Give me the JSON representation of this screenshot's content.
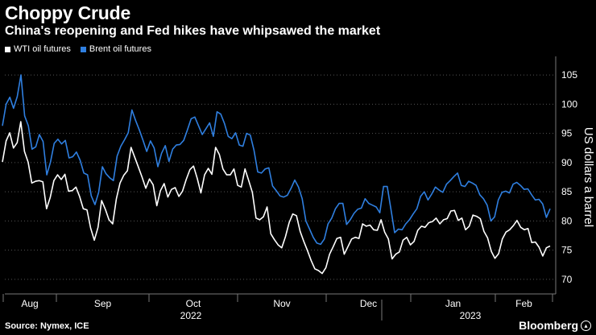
{
  "header": {
    "title": "Choppy Crude",
    "subtitle": "China's reopening and Fed hikes have whipsawed the market"
  },
  "footer": {
    "source": "Source: Nymex, ICE",
    "brand": "Bloomberg"
  },
  "colors": {
    "background": "#000000",
    "wti": "#ffffff",
    "brent": "#2f7fe0",
    "grid": "#555555"
  },
  "chart_data": {
    "type": "line",
    "title": "Choppy Crude",
    "subtitle": "China's reopening and Fed hikes have whipsawed the market",
    "xlabel": "",
    "ylabel": "US dollars a barrel",
    "ylim": [
      67.5,
      107.5
    ],
    "yticks": [
      70,
      75,
      80,
      85,
      90,
      95,
      100,
      105
    ],
    "xtick_labels": [
      "Aug",
      "Sep",
      "Oct",
      "Nov",
      "Dec",
      "Jan",
      "Feb"
    ],
    "year_labels": [
      "2022",
      "2023"
    ],
    "grid": true,
    "legend_position": "top-left",
    "series": [
      {
        "name": "WTI oil futures",
        "color": "#ffffff",
        "values": [
          90.1,
          93.7,
          95.1,
          92.5,
          93.4,
          97.0,
          91.9,
          90.1,
          86.5,
          86.8,
          86.9,
          86.7,
          82.1,
          84.0,
          86.9,
          87.9,
          87.1,
          88.0,
          85.1,
          85.2,
          85.8,
          84.2,
          82.1,
          81.9,
          78.8,
          76.7,
          78.9,
          83.5,
          82.0,
          80.2,
          79.5,
          83.8,
          86.5,
          87.8,
          88.6,
          92.6,
          90.9,
          89.2,
          87.5,
          85.6,
          87.2,
          86.2,
          82.6,
          85.2,
          86.4,
          84.1,
          85.4,
          85.7,
          84.2,
          85.1,
          87.1,
          88.8,
          89.4,
          87.3,
          84.8,
          87.9,
          89.0,
          88.0,
          92.6,
          91.4,
          88.9,
          87.9,
          87.9,
          88.9,
          86.1,
          85.8,
          88.9,
          86.9,
          84.9,
          80.5,
          80.2,
          80.7,
          82.4,
          77.8,
          76.8,
          75.9,
          75.4,
          77.3,
          79.7,
          81.2,
          80.9,
          78.2,
          76.5,
          74.9,
          73.2,
          71.8,
          71.5,
          71.0,
          72.0,
          74.3,
          75.6,
          77.0,
          77.2,
          74.3,
          75.6,
          76.9,
          77.2,
          77.0,
          79.5,
          79.1,
          79.3,
          78.5,
          78.4,
          80.2,
          78.1,
          76.9,
          73.5,
          74.3,
          74.7,
          76.7,
          77.2,
          75.9,
          76.5,
          78.4,
          79.1,
          78.9,
          79.7,
          79.9,
          80.5,
          79.5,
          80.2,
          80.4,
          81.7,
          81.8,
          80.1,
          80.5,
          78.5,
          79.1,
          81.0,
          80.8,
          80.4,
          78.2,
          77.1,
          74.8,
          73.6,
          74.4,
          76.9,
          78.1,
          78.5,
          79.2,
          80.1,
          78.9,
          78.5,
          78.7,
          76.3,
          76.4,
          75.5,
          74.0,
          75.4,
          75.7
        ]
      },
      {
        "name": "Brent oil futures",
        "color": "#2f7fe0",
        "values": [
          96.3,
          100.0,
          101.2,
          99.3,
          101.3,
          105.0,
          98.0,
          96.3,
          92.3,
          92.7,
          94.8,
          93.6,
          87.9,
          90.1,
          93.3,
          94.0,
          93.2,
          93.8,
          90.8,
          91.0,
          91.8,
          90.4,
          88.2,
          87.9,
          84.3,
          82.8,
          84.9,
          89.3,
          88.1,
          87.4,
          86.9,
          91.1,
          92.8,
          93.9,
          95.1,
          99.0,
          97.2,
          95.6,
          93.8,
          91.9,
          93.7,
          92.5,
          89.3,
          91.6,
          92.9,
          90.2,
          92.3,
          93.0,
          93.1,
          93.8,
          95.6,
          97.5,
          97.8,
          96.3,
          94.8,
          95.8,
          96.8,
          94.5,
          98.7,
          98.3,
          96.7,
          94.5,
          94.1,
          95.1,
          93.0,
          92.8,
          95.0,
          94.7,
          92.1,
          88.4,
          88.2,
          88.9,
          89.1,
          86.0,
          85.2,
          84.3,
          84.1,
          84.4,
          85.6,
          87.0,
          85.8,
          83.8,
          80.0,
          78.6,
          77.2,
          76.2,
          76.0,
          76.9,
          79.5,
          80.5,
          82.1,
          83.0,
          83.0,
          79.4,
          80.2,
          81.3,
          82.0,
          82.2,
          83.8,
          83.0,
          82.7,
          82.4,
          81.4,
          85.9,
          85.9,
          82.0,
          78.0,
          78.6,
          78.5,
          79.5,
          80.2,
          81.2,
          82.1,
          84.2,
          85.0,
          83.6,
          84.6,
          85.8,
          85.3,
          84.9,
          86.3,
          86.9,
          87.6,
          88.2,
          86.1,
          85.9,
          86.8,
          86.5,
          86.1,
          84.5,
          83.8,
          82.7,
          80.0,
          80.7,
          83.6,
          84.9,
          85.1,
          84.8,
          86.3,
          86.6,
          86.1,
          85.4,
          85.5,
          84.5,
          83.6,
          83.7,
          82.9,
          80.6,
          82.1
        ]
      }
    ]
  }
}
